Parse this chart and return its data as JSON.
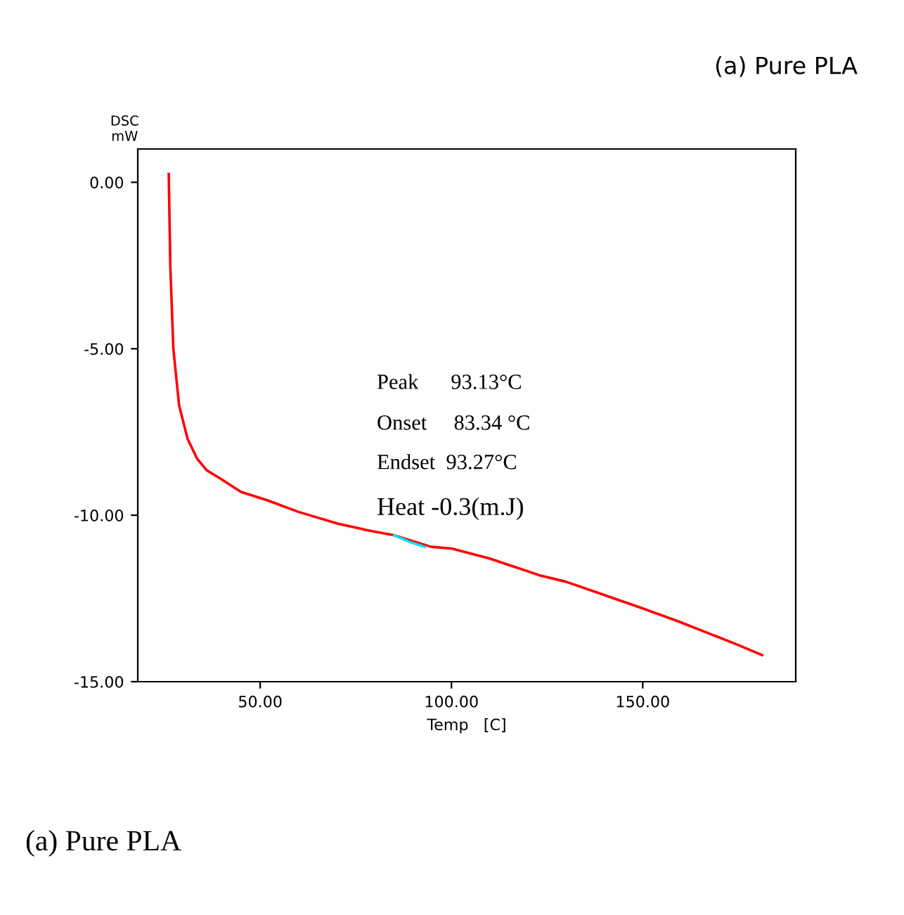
{
  "chart_data": {
    "type": "line",
    "title": "(a) Pure PLA",
    "xlabel": "Temp   [C]",
    "ylabel": "DSC\nmW",
    "xlim": [
      18,
      190
    ],
    "ylim": [
      -15,
      1
    ],
    "xticks": [
      {
        "value": 50,
        "label": "50.00"
      },
      {
        "value": 100,
        "label": "100.00"
      },
      {
        "value": 150,
        "label": "150.00"
      }
    ],
    "yticks": [
      {
        "value": 0,
        "label": "0.00"
      },
      {
        "value": -5,
        "label": "-5.00"
      },
      {
        "value": -10,
        "label": "-10.00"
      },
      {
        "value": -15,
        "label": "-15.00"
      }
    ],
    "grid": false,
    "legend": false,
    "marker": "none",
    "line_style": "solid",
    "series": [
      {
        "color": "#ff0000",
        "x": [
          26.1,
          26.5,
          27.3,
          28.8,
          31,
          33.5,
          36,
          39.6,
          45,
          51.8,
          60,
          70.2,
          78,
          84.9,
          94.7,
          100,
          110,
          122.9,
          130,
          140,
          150,
          159.6,
          169.5,
          175,
          181.2
        ],
        "values": [
          0.25,
          -2.5,
          -5.0,
          -6.7,
          -7.7,
          -8.3,
          -8.65,
          -8.9,
          -9.3,
          -9.55,
          -9.9,
          -10.25,
          -10.45,
          -10.6,
          -10.95,
          -11.0,
          -11.3,
          -11.8,
          -12.0,
          -12.4,
          -12.8,
          -13.2,
          -13.65,
          -13.9,
          -14.2
        ]
      },
      {
        "color": "#00e5ee",
        "x": [
          85,
          89,
          93
        ],
        "values": [
          -10.6,
          -10.8,
          -10.95
        ]
      }
    ],
    "annotations": [
      "Peak      93.13°C",
      "Onset     83.34 °C",
      "Endset  93.27°C",
      "Heat -0.3(m.J)",
      "(a) Pure PLA"
    ]
  }
}
